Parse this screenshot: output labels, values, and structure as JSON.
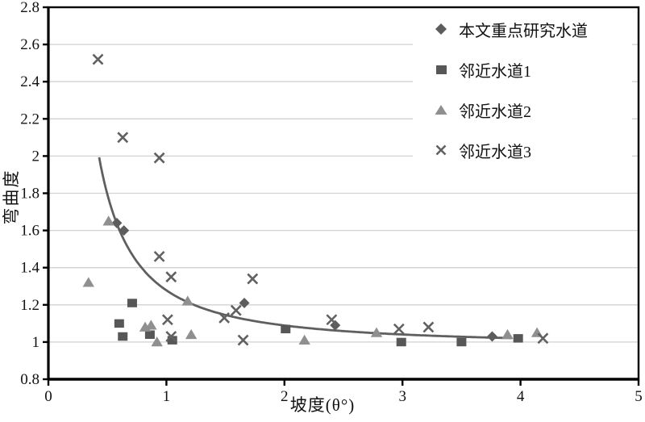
{
  "chart_data": {
    "type": "scatter",
    "title": "",
    "xlabel": "坡度(θ°)",
    "ylabel": "弯曲度",
    "xlim": [
      0,
      5
    ],
    "ylim": [
      0.8,
      2.8
    ],
    "x_tick_values": [
      0,
      1,
      2,
      3,
      4,
      5
    ],
    "x_tick_labels": [
      "0",
      "1",
      "2",
      "3",
      "4",
      "5"
    ],
    "y_tick_values": [
      0.8,
      1.0,
      1.2,
      1.4,
      1.6,
      1.8,
      2.0,
      2.2,
      2.4,
      2.6,
      2.8
    ],
    "y_tick_labels": [
      "0.8",
      "1",
      "1.2",
      "1.4",
      "1.6",
      "1.8",
      "2",
      "2.2",
      "2.4",
      "2.6",
      "2.8"
    ],
    "grid": "horizontal",
    "grid_values": [
      1.0,
      1.2,
      1.4,
      1.6,
      1.8,
      2.0,
      2.2,
      2.4,
      2.6
    ],
    "legend_position": "top-right-inside",
    "colors": {
      "dark_marker": "#5d5d5d",
      "light_marker": "#8f8f8f",
      "x_marker": "#616161",
      "curve": "#5f5f5f",
      "grid_line": "#d2d2d2",
      "axis": "#000000",
      "background": "#ffffff"
    },
    "series": [
      {
        "name": "本文重点研究水道",
        "marker": "diamond",
        "color": "#5d5d5d",
        "points": [
          [
            0.58,
            1.64
          ],
          [
            0.64,
            1.6
          ],
          [
            1.66,
            1.21
          ],
          [
            2.43,
            1.09
          ],
          [
            3.76,
            1.03
          ]
        ]
      },
      {
        "name": "邻近水道1",
        "marker": "square",
        "color": "#575757",
        "points": [
          [
            0.6,
            1.1
          ],
          [
            0.63,
            1.03
          ],
          [
            0.71,
            1.21
          ],
          [
            0.86,
            1.04
          ],
          [
            1.05,
            1.01
          ],
          [
            2.01,
            1.07
          ],
          [
            2.99,
            1.0
          ],
          [
            3.5,
            1.0
          ],
          [
            3.98,
            1.02
          ]
        ]
      },
      {
        "name": "邻近水道2",
        "marker": "triangle",
        "color": "#8f8f8f",
        "points": [
          [
            0.34,
            1.32
          ],
          [
            0.51,
            1.65
          ],
          [
            0.82,
            1.08
          ],
          [
            0.87,
            1.09
          ],
          [
            0.92,
            1.0
          ],
          [
            1.18,
            1.22
          ],
          [
            1.21,
            1.04
          ],
          [
            2.17,
            1.01
          ],
          [
            2.78,
            1.05
          ],
          [
            3.89,
            1.04
          ],
          [
            4.14,
            1.05
          ]
        ]
      },
      {
        "name": "邻近水道3",
        "marker": "x",
        "color": "#616161",
        "points": [
          [
            0.42,
            2.52
          ],
          [
            0.63,
            2.1
          ],
          [
            0.94,
            1.99
          ],
          [
            0.94,
            1.46
          ],
          [
            1.04,
            1.35
          ],
          [
            1.01,
            1.12
          ],
          [
            1.04,
            1.03
          ],
          [
            1.49,
            1.13
          ],
          [
            1.59,
            1.17
          ],
          [
            1.73,
            1.34
          ],
          [
            1.65,
            1.01
          ],
          [
            2.4,
            1.12
          ],
          [
            2.97,
            1.07
          ],
          [
            3.22,
            1.08
          ],
          [
            4.19,
            1.02
          ]
        ]
      }
    ],
    "fit_curve": {
      "equation": "y = 0.298·x^(-1.45) + 0.98",
      "a": 0.298,
      "b": -1.45,
      "c": 0.98,
      "x_range": [
        0.43,
        3.93
      ],
      "color": "#5f5f5f"
    }
  }
}
